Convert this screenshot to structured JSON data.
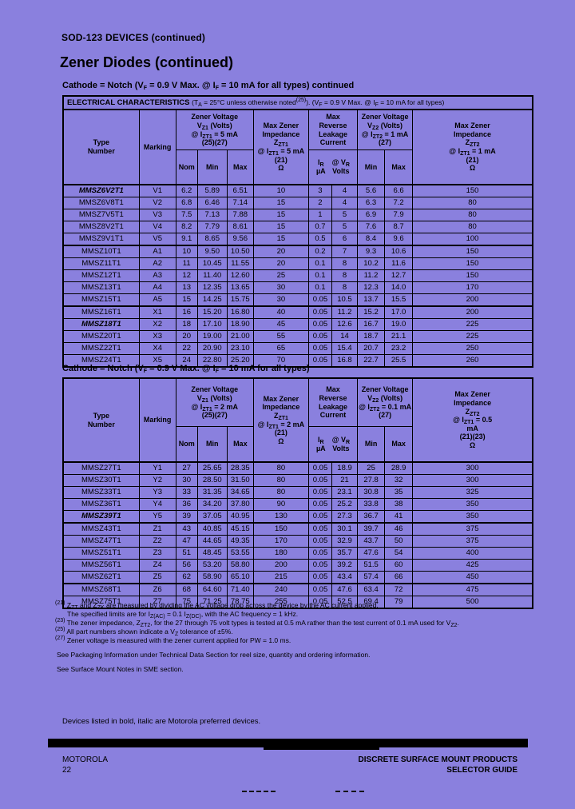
{
  "colors": {
    "page_background": "#8a80de",
    "text": "#000000",
    "footer_bar": "#000000"
  },
  "page": {
    "header_small": "SOD-123 DEVICES (continued)",
    "title": "Zener Diodes (continued)",
    "preferred_note": "Devices listed in bold, italic are Motorola preferred devices.",
    "footer_left_line1": "MOTOROLA",
    "footer_left_line2": "22",
    "footer_right_line1": "DISCRETE SURFACE MOUNT PRODUCTS",
    "footer_right_line2": "SELECTOR GUIDE"
  },
  "columns": [
    "type-number",
    "marking",
    "vz1-nom",
    "vz1-min",
    "vz1-max",
    "zzt1-ohms",
    "ir-ua",
    "vr-volts",
    "vz2-min",
    "vz2-max",
    "zzt2-ohms"
  ],
  "tables": [
    {
      "caption_html": "Cathode = Notch (V<sub>F</sub> = 0.9 V Max. @ I<sub>F</sub> = 10 mA for all types) continued",
      "elec_label": "ELECTRICAL CHARACTERISTICS",
      "elec_cond_html": "(T<sub>A</sub> = 25°C unless otherwise noted<sup>(25)</sup>). (V<sub>F</sub> = 0.9 V Max. @ I<sub>F</sub> = 10 mA for all types)",
      "head": {
        "type": "Type<br>Number",
        "marking": "Marking",
        "vz1": "Zener  Voltage<br>V<sub>Z1</sub> (Volts)<br>@ I<sub>ZT1</sub> = 5 mA<br>(25)(27)",
        "nom": "Nom",
        "min": "Min",
        "max": "Max",
        "zzt1": "Max Zener<br>Impedance<br>Z<sub>ZT1</sub><br>@ I<sub>ZT1</sub> = 5 mA<br>(21)<br>Ω",
        "leakage": "Max<br>Reverse<br>Leakage<br>Current",
        "ir": "I<sub>R</sub><br>µA",
        "vr": "@ V<sub>R</sub><br>Volts",
        "vz2": "Zener Voltage<br>V<sub>Z2</sub> (Volts)<br>@ I<sub>ZT2</sub> = 1 mA<br>(27)",
        "min2": "Min",
        "max2": "Max",
        "zzt2": "Max Zener<br>Impedance<br>Z<sub>ZT2</sub><br>@ I<sub>ZT1</sub> = 1 mA<br>(21)<br>Ω"
      },
      "groups": [
        [
          {
            "preferred": true,
            "cells": [
              "MMSZ6V2T1",
              "V1",
              "6.2",
              "5.89",
              "6.51",
              "10",
              "3",
              "4",
              "5.6",
              "6.6",
              "150"
            ]
          },
          {
            "cells": [
              "MMSZ6V8T1",
              "V2",
              "6.8",
              "6.46",
              "7.14",
              "15",
              "2",
              "4",
              "6.3",
              "7.2",
              "80"
            ]
          },
          {
            "cells": [
              "MMSZ7V5T1",
              "V3",
              "7.5",
              "7.13",
              "7.88",
              "15",
              "1",
              "5",
              "6.9",
              "7.9",
              "80"
            ]
          },
          {
            "cells": [
              "MMSZ8V2T1",
              "V4",
              "8.2",
              "7.79",
              "8.61",
              "15",
              "0.7",
              "5",
              "7.6",
              "8.7",
              "80"
            ]
          },
          {
            "cells": [
              "MMSZ9V1T1",
              "V5",
              "9.1",
              "8.65",
              "9.56",
              "15",
              "0.5",
              "6",
              "8.4",
              "9.6",
              "100"
            ]
          }
        ],
        [
          {
            "cells": [
              "MMSZ10T1",
              "A1",
              "10",
              "9.50",
              "10.50",
              "20",
              "0.2",
              "7",
              "9.3",
              "10.6",
              "150"
            ]
          },
          {
            "cells": [
              "MMSZ11T1",
              "A2",
              "11",
              "10.45",
              "11.55",
              "20",
              "0.1",
              "8",
              "10.2",
              "11.6",
              "150"
            ]
          },
          {
            "cells": [
              "MMSZ12T1",
              "A3",
              "12",
              "11.40",
              "12.60",
              "25",
              "0.1",
              "8",
              "11.2",
              "12.7",
              "150"
            ]
          },
          {
            "cells": [
              "MMSZ13T1",
              "A4",
              "13",
              "12.35",
              "13.65",
              "30",
              "0.1",
              "8",
              "12.3",
              "14.0",
              "170"
            ]
          },
          {
            "cells": [
              "MMSZ15T1",
              "A5",
              "15",
              "14.25",
              "15.75",
              "30",
              "0.05",
              "10.5",
              "13.7",
              "15.5",
              "200"
            ]
          }
        ],
        [
          {
            "cells": [
              "MMSZ16T1",
              "X1",
              "16",
              "15.20",
              "16.80",
              "40",
              "0.05",
              "11.2",
              "15.2",
              "17.0",
              "200"
            ]
          },
          {
            "preferred": true,
            "cells": [
              "MMSZ18T1",
              "X2",
              "18",
              "17.10",
              "18.90",
              "45",
              "0.05",
              "12.6",
              "16.7",
              "19.0",
              "225"
            ]
          },
          {
            "cells": [
              "MMSZ20T1",
              "X3",
              "20",
              "19.00",
              "21.00",
              "55",
              "0.05",
              "14",
              "18.7",
              "21.1",
              "225"
            ]
          },
          {
            "cells": [
              "MMSZ22T1",
              "X4",
              "22",
              "20.90",
              "23.10",
              "65",
              "0.05",
              "15.4",
              "20.7",
              "23.2",
              "250"
            ]
          },
          {
            "cells": [
              "MMSZ24T1",
              "X5",
              "24",
              "22.80",
              "25.20",
              "70",
              "0.05",
              "16.8",
              "22.7",
              "25.5",
              "260"
            ]
          }
        ]
      ]
    },
    {
      "caption_html": "Cathode = Notch (V<sub>F</sub> = 0.9 V Max. @ I<sub>F</sub> = 10 mA for all types)",
      "head": {
        "type": "Type<br>Number",
        "marking": "Marking",
        "vz1": "Zener  Voltage<br>V<sub>Z1</sub> (Volts)<br>@ I<sub>ZT1</sub> = 2 mA<br>(25)(27)",
        "nom": "Nom",
        "min": "Min",
        "max": "Max",
        "zzt1": "Max Zener<br>Impedance<br>Z<sub>ZT1</sub><br>@ I<sub>ZT1</sub> = 2 mA<br>(21)<br>Ω",
        "leakage": "Max<br>Reverse<br>Leakage<br>Current",
        "ir": "I<sub>R</sub><br>µA",
        "vr": "@ V<sub>R</sub><br>Volts",
        "vz2": "Zener Voltage<br>V<sub>Z2</sub> (Volts)<br>@ I<sub>ZT2</sub> = 0.1 mA<br>(27)",
        "min2": "Min",
        "max2": "Max",
        "zzt2": "Max Zener<br>Impedance<br>Z<sub>ZT2</sub><br>@ I<sub>ZT1</sub> = 0.5<br>mA<br>(21)(23)<br>Ω"
      },
      "groups": [
        [
          {
            "cells": [
              "MMSZ27T1",
              "Y1",
              "27",
              "25.65",
              "28.35",
              "80",
              "0.05",
              "18.9",
              "25",
              "28.9",
              "300"
            ]
          },
          {
            "cells": [
              "MMSZ30T1",
              "Y2",
              "30",
              "28.50",
              "31.50",
              "80",
              "0.05",
              "21",
              "27.8",
              "32",
              "300"
            ]
          },
          {
            "cells": [
              "MMSZ33T1",
              "Y3",
              "33",
              "31.35",
              "34.65",
              "80",
              "0.05",
              "23.1",
              "30.8",
              "35",
              "325"
            ]
          },
          {
            "cells": [
              "MMSZ36T1",
              "Y4",
              "36",
              "34.20",
              "37.80",
              "90",
              "0.05",
              "25.2",
              "33.8",
              "38",
              "350"
            ]
          },
          {
            "preferred": true,
            "cells": [
              "MMSZ39T1",
              "Y5",
              "39",
              "37.05",
              "40.95",
              "130",
              "0.05",
              "27.3",
              "36.7",
              "41",
              "350"
            ]
          }
        ],
        [
          {
            "cells": [
              "MMSZ43T1",
              "Z1",
              "43",
              "40.85",
              "45.15",
              "150",
              "0.05",
              "30.1",
              "39.7",
              "46",
              "375"
            ]
          },
          {
            "cells": [
              "MMSZ47T1",
              "Z2",
              "47",
              "44.65",
              "49.35",
              "170",
              "0.05",
              "32.9",
              "43.7",
              "50",
              "375"
            ]
          },
          {
            "cells": [
              "MMSZ51T1",
              "Z3",
              "51",
              "48.45",
              "53.55",
              "180",
              "0.05",
              "35.7",
              "47.6",
              "54",
              "400"
            ]
          },
          {
            "cells": [
              "MMSZ56T1",
              "Z4",
              "56",
              "53.20",
              "58.80",
              "200",
              "0.05",
              "39.2",
              "51.5",
              "60",
              "425"
            ]
          },
          {
            "cells": [
              "MMSZ62T1",
              "Z5",
              "62",
              "58.90",
              "65.10",
              "215",
              "0.05",
              "43.4",
              "57.4",
              "66",
              "450"
            ]
          }
        ],
        [
          {
            "cells": [
              "MMSZ68T1",
              "Z6",
              "68",
              "64.60",
              "71.40",
              "240",
              "0.05",
              "47.6",
              "63.4",
              "72",
              "475"
            ]
          },
          {
            "cells": [
              "MMSZ75T1",
              "Z7",
              "75",
              "71.25",
              "78.75",
              "255",
              "0.05",
              "52.5",
              "69.4",
              "79",
              "500"
            ]
          }
        ]
      ]
    }
  ],
  "footnotes": [
    {
      "num": "(21)",
      "html": "Z<sub>ZT</sub> and Z<sub>ZK</sub> are measured by dividing the AC voltage drop across the device by the AC current applied.<br>The specified limits are for I<sub>Z(AC)</sub> = 0.1 I<sub>Z(DC)</sub>, with the AC frequency = 1 kHz."
    },
    {
      "num": "(23)",
      "html": "The zener impedance, Z<sub>ZT2</sub>, for the 27 through 75 volt types is tested at 0.5 mA rather than the test current of 0.1 mA used for V<sub>Z2</sub>."
    },
    {
      "num": "(25)",
      "html": "All part numbers shown indicate a V<sub>Z</sub> tolerance of ±5%."
    },
    {
      "num": "(27)",
      "html": "Zener voltage is measured with the zener current applied for PW = 1.0 ms."
    }
  ],
  "notes": [
    "See Packaging Information under Technical Data Section for reel size, quantity and ordering information.",
    "See Surface Mount Notes in SME section."
  ]
}
